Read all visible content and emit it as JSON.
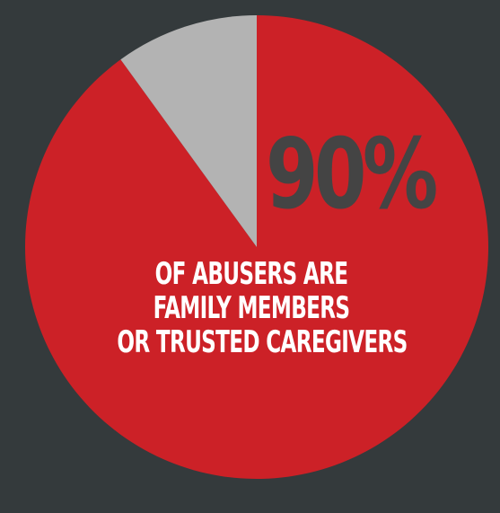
{
  "chart_data": {
    "type": "pie",
    "slices": [
      {
        "label": "",
        "value": 90,
        "color": "#cc2127"
      },
      {
        "label": "",
        "value": 10,
        "color": "#b3b3b3"
      }
    ],
    "start_angle_deg": -90
  },
  "stat": {
    "value": "90%"
  },
  "caption": {
    "line1": "OF ABUSERS ARE",
    "line2": "FAMILY MEMBERS",
    "line3": "OR TRUSTED CAREGIVERS"
  },
  "colors": {
    "background": "#343a3c",
    "accent": "#cc2127",
    "muted": "#b3b3b3",
    "stat_text": "#444444"
  }
}
